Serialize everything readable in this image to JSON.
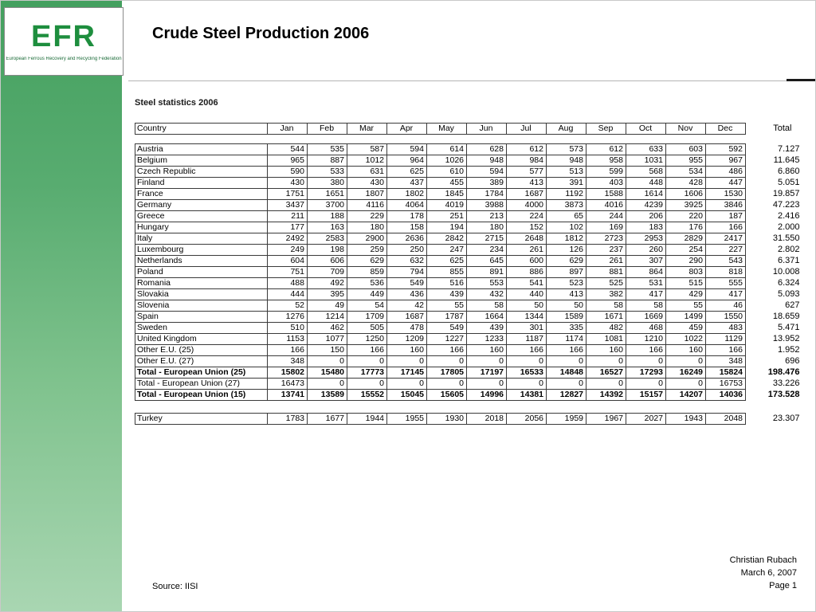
{
  "slide": {
    "title": "Crude Steel Production 2006",
    "source": "Source: IISI",
    "footer": {
      "author": "Christian Rubach",
      "date": "March 6, 2007",
      "page": "Page 1"
    }
  },
  "logo": {
    "acronym": "EFR",
    "subtitle": "European Ferrous Recovery and Recycling Federation"
  },
  "colors": {
    "sidebar_green_top": "#44a05f",
    "sidebar_green_bottom": "#a9d6b2",
    "logo_green": "#1e8e3e",
    "table_border": "#3a3a3a"
  },
  "table": {
    "title": "Steel statistics 2006",
    "country_header": "Country",
    "months": [
      "Jan",
      "Feb",
      "Mar",
      "Apr",
      "May",
      "Jun",
      "Jul",
      "Aug",
      "Sep",
      "Oct",
      "Nov",
      "Dec"
    ],
    "total_header": "Total",
    "rows": [
      {
        "country": "Austria",
        "values": [
          544,
          535,
          587,
          594,
          614,
          628,
          612,
          573,
          612,
          633,
          603,
          592
        ],
        "total": "7.127",
        "emphasis": false
      },
      {
        "country": "Belgium",
        "values": [
          965,
          887,
          1012,
          964,
          1026,
          948,
          984,
          948,
          958,
          1031,
          955,
          967
        ],
        "total": "11.645",
        "emphasis": false
      },
      {
        "country": "Czech Republic",
        "values": [
          590,
          533,
          631,
          625,
          610,
          594,
          577,
          513,
          599,
          568,
          534,
          486
        ],
        "total": "6.860",
        "emphasis": false
      },
      {
        "country": "Finland",
        "values": [
          430,
          380,
          430,
          437,
          455,
          389,
          413,
          391,
          403,
          448,
          428,
          447
        ],
        "total": "5.051",
        "emphasis": false
      },
      {
        "country": "France",
        "values": [
          1751,
          1651,
          1807,
          1802,
          1845,
          1784,
          1687,
          1192,
          1588,
          1614,
          1606,
          1530
        ],
        "total": "19.857",
        "emphasis": false
      },
      {
        "country": "Germany",
        "values": [
          3437,
          3700,
          4116,
          4064,
          4019,
          3988,
          4000,
          3873,
          4016,
          4239,
          3925,
          3846
        ],
        "total": "47.223",
        "emphasis": false
      },
      {
        "country": "Greece",
        "values": [
          211,
          188,
          229,
          178,
          251,
          213,
          224,
          65,
          244,
          206,
          220,
          187
        ],
        "total": "2.416",
        "emphasis": false
      },
      {
        "country": "Hungary",
        "values": [
          177,
          163,
          180,
          158,
          194,
          180,
          152,
          102,
          169,
          183,
          176,
          166
        ],
        "total": "2.000",
        "emphasis": false
      },
      {
        "country": "Italy",
        "values": [
          2492,
          2583,
          2900,
          2636,
          2842,
          2715,
          2648,
          1812,
          2723,
          2953,
          2829,
          2417
        ],
        "total": "31.550",
        "emphasis": false
      },
      {
        "country": "Luxembourg",
        "values": [
          249,
          198,
          259,
          250,
          247,
          234,
          261,
          126,
          237,
          260,
          254,
          227
        ],
        "total": "2.802",
        "emphasis": false
      },
      {
        "country": "Netherlands",
        "values": [
          604,
          606,
          629,
          632,
          625,
          645,
          600,
          629,
          261,
          307,
          290,
          543
        ],
        "total": "6.371",
        "emphasis": false
      },
      {
        "country": "Poland",
        "values": [
          751,
          709,
          859,
          794,
          855,
          891,
          886,
          897,
          881,
          864,
          803,
          818
        ],
        "total": "10.008",
        "emphasis": false
      },
      {
        "country": "Romania",
        "values": [
          488,
          492,
          536,
          549,
          516,
          553,
          541,
          523,
          525,
          531,
          515,
          555
        ],
        "total": "6.324",
        "emphasis": false
      },
      {
        "country": "Slovakia",
        "values": [
          444,
          395,
          449,
          436,
          439,
          432,
          440,
          413,
          382,
          417,
          429,
          417
        ],
        "total": "5.093",
        "emphasis": false
      },
      {
        "country": "Slovenia",
        "values": [
          52,
          49,
          54,
          42,
          55,
          58,
          50,
          50,
          58,
          58,
          55,
          46
        ],
        "total": "627",
        "emphasis": false
      },
      {
        "country": "Spain",
        "values": [
          1276,
          1214,
          1709,
          1687,
          1787,
          1664,
          1344,
          1589,
          1671,
          1669,
          1499,
          1550
        ],
        "total": "18.659",
        "emphasis": false
      },
      {
        "country": "Sweden",
        "values": [
          510,
          462,
          505,
          478,
          549,
          439,
          301,
          335,
          482,
          468,
          459,
          483
        ],
        "total": "5.471",
        "emphasis": false
      },
      {
        "country": "United Kingdom",
        "values": [
          1153,
          1077,
          1250,
          1209,
          1227,
          1233,
          1187,
          1174,
          1081,
          1210,
          1022,
          1129
        ],
        "total": "13.952",
        "emphasis": false
      },
      {
        "country": "Other E.U. (25)",
        "values": [
          166,
          150,
          166,
          160,
          166,
          160,
          166,
          166,
          160,
          166,
          160,
          166
        ],
        "total": "1.952",
        "emphasis": false
      },
      {
        "country": "Other E.U. (27)",
        "values": [
          348,
          0,
          0,
          0,
          0,
          0,
          0,
          0,
          0,
          0,
          0,
          348
        ],
        "total": "696",
        "emphasis": false
      },
      {
        "country": "Total - European Union (25)",
        "values": [
          15802,
          15480,
          17773,
          17145,
          17805,
          17197,
          16533,
          14848,
          16527,
          17293,
          16249,
          15824
        ],
        "total": "198.476",
        "emphasis": true
      },
      {
        "country": "Total - European Union (27)",
        "values": [
          16473,
          0,
          0,
          0,
          0,
          0,
          0,
          0,
          0,
          0,
          0,
          16753
        ],
        "total": "33.226",
        "emphasis": false
      },
      {
        "country": "Total - European Union (15)",
        "values": [
          13741,
          13589,
          15552,
          15045,
          15605,
          14996,
          14381,
          12827,
          14392,
          15157,
          14207,
          14036
        ],
        "total": "173.528",
        "emphasis": true
      }
    ],
    "turkey": {
      "country": "Turkey",
      "values": [
        1783,
        1677,
        1944,
        1955,
        1930,
        2018,
        2056,
        1959,
        1967,
        2027,
        1943,
        2048
      ],
      "total": "23.307",
      "emphasis": false
    }
  }
}
